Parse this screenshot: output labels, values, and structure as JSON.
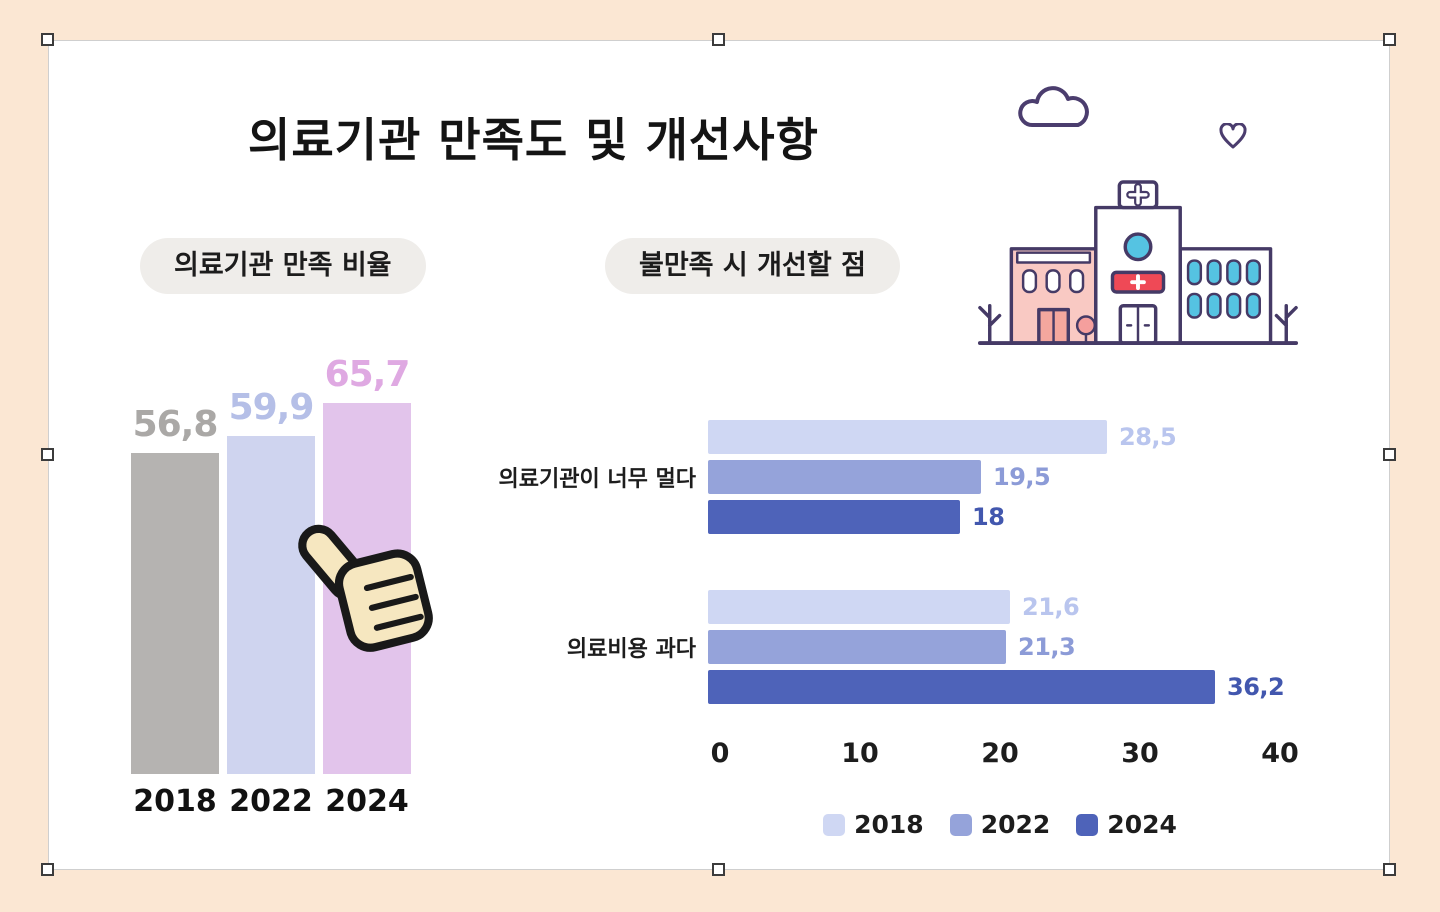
{
  "page": {
    "title": "의료기관 만족도 및 개선사항"
  },
  "left_panel": {
    "badge": "의료기관 만족 비율"
  },
  "right_panel": {
    "badge": "불만족 시 개선할 점"
  },
  "colors": {
    "background": "#fbe7d3",
    "card": "#ffffff",
    "pill": "#efedea",
    "left_bars": [
      "#b5b3b1",
      "#cfd4ef",
      "#e2c4eb"
    ],
    "left_value_labels": [
      "#aaa8a6",
      "#b5bfe7",
      "#dfa9e2"
    ],
    "hbar_2018": "#cfd7f3",
    "hbar_2022": "#95a3da",
    "hbar_2024": "#4e63b9"
  },
  "chart_data": [
    {
      "type": "bar",
      "title": "의료기관 만족 비율",
      "categories": [
        "2018",
        "2022",
        "2024"
      ],
      "values": [
        56.8,
        59.9,
        65.7
      ],
      "value_labels": [
        "56,8",
        "59,9",
        "65,7"
      ],
      "bar_colors": [
        "#b5b3b1",
        "#cfd4ef",
        "#e2c4eb"
      ],
      "value_colors": [
        "#aaa8a6",
        "#b5bfe7",
        "#dfa9e2"
      ],
      "xlabel": "",
      "ylabel": "",
      "ylim": [
        0,
        80
      ],
      "grid": false,
      "legend_position": "none"
    },
    {
      "type": "bar",
      "orientation": "horizontal",
      "title": "불만족 시 개선할 점",
      "categories": [
        "의료기관이 너무 멀다",
        "의료비용 과다"
      ],
      "series": [
        {
          "name": "2018",
          "values": [
            28.5,
            21.6
          ],
          "labels": [
            "28,5",
            "21,6"
          ],
          "color": "#cfd7f3",
          "label_color": "#b9c5ee"
        },
        {
          "name": "2022",
          "values": [
            19.5,
            21.3
          ],
          "labels": [
            "19,5",
            "21,3"
          ],
          "color": "#95a3da",
          "label_color": "#8c9bd7"
        },
        {
          "name": "2024",
          "values": [
            18,
            36.2
          ],
          "labels": [
            "18",
            "36,2"
          ],
          "color": "#4e63b9",
          "label_color": "#4257ae"
        }
      ],
      "x_ticks": [
        0,
        10,
        20,
        30,
        40
      ],
      "xlim": [
        0,
        40
      ],
      "grid": false,
      "legend_position": "bottom"
    }
  ]
}
